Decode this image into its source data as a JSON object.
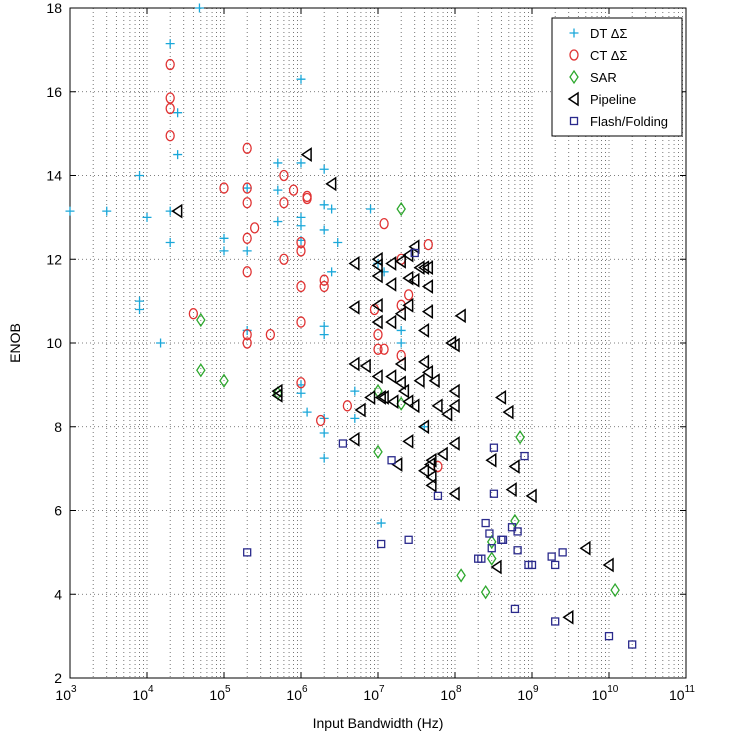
{
  "chart_data": {
    "type": "scatter",
    "title": "",
    "xlabel": "Input Bandwidth (Hz)",
    "ylabel": "ENOB",
    "xscale": "log",
    "xlim": [
      1000,
      100000000000
    ],
    "ylim": [
      2,
      18
    ],
    "grid": true,
    "legend_position": "top-right",
    "x_tick_labels": [
      {
        "base": "10",
        "exp": "3"
      },
      {
        "base": "10",
        "exp": "4"
      },
      {
        "base": "10",
        "exp": "5"
      },
      {
        "base": "10",
        "exp": "6"
      },
      {
        "base": "10",
        "exp": "7"
      },
      {
        "base": "10",
        "exp": "8"
      },
      {
        "base": "10",
        "exp": "9"
      },
      {
        "base": "10",
        "exp": "10"
      },
      {
        "base": "10",
        "exp": "11"
      }
    ],
    "y_tick_labels": [
      "2",
      "4",
      "6",
      "8",
      "10",
      "12",
      "14",
      "16",
      "18"
    ],
    "series": [
      {
        "name": "DT ΔΣ",
        "marker": "plus",
        "color": "#1aa7d9",
        "points": [
          [
            1000,
            13.15
          ],
          [
            3000,
            13.15
          ],
          [
            8000,
            14.0
          ],
          [
            8000,
            11.0
          ],
          [
            8000,
            10.8
          ],
          [
            10000,
            13.0
          ],
          [
            15000,
            10.0
          ],
          [
            20000,
            17.15
          ],
          [
            20000,
            13.15
          ],
          [
            20000,
            12.4
          ],
          [
            25000,
            15.5
          ],
          [
            25000,
            14.5
          ],
          [
            48000,
            18.0
          ],
          [
            100000,
            12.5
          ],
          [
            100000,
            12.2
          ],
          [
            200000,
            13.7
          ],
          [
            200000,
            12.2
          ],
          [
            200000,
            10.3
          ],
          [
            500000,
            14.3
          ],
          [
            500000,
            13.65
          ],
          [
            500000,
            12.9
          ],
          [
            1000000,
            16.3
          ],
          [
            1000000,
            14.3
          ],
          [
            1000000,
            13.0
          ],
          [
            1000000,
            12.8
          ],
          [
            1000000,
            12.45
          ],
          [
            1000000,
            9.0
          ],
          [
            1000000,
            8.8
          ],
          [
            1200000,
            8.35
          ],
          [
            2000000,
            14.15
          ],
          [
            2000000,
            13.3
          ],
          [
            2000000,
            12.7
          ],
          [
            2000000,
            10.4
          ],
          [
            2000000,
            10.2
          ],
          [
            2000000,
            8.2
          ],
          [
            2000000,
            7.85
          ],
          [
            2000000,
            7.25
          ],
          [
            2500000,
            13.2
          ],
          [
            2500000,
            11.7
          ],
          [
            3000000,
            12.4
          ],
          [
            5000000,
            8.85
          ],
          [
            5000000,
            8.2
          ],
          [
            8000000,
            13.2
          ],
          [
            10000000,
            11.9
          ],
          [
            11000000,
            5.7
          ],
          [
            12000000,
            11.7
          ],
          [
            20000000,
            10.3
          ],
          [
            20000000,
            10.0
          ],
          [
            40000000,
            8.0
          ]
        ]
      },
      {
        "name": "CT ΔΣ",
        "marker": "circle",
        "color": "#e03232",
        "points": [
          [
            20000,
            16.65
          ],
          [
            20000,
            15.85
          ],
          [
            20000,
            15.6
          ],
          [
            20000,
            14.95
          ],
          [
            40000,
            10.7
          ],
          [
            100000,
            13.7
          ],
          [
            200000,
            14.65
          ],
          [
            200000,
            13.7
          ],
          [
            200000,
            13.35
          ],
          [
            200000,
            12.5
          ],
          [
            200000,
            11.7
          ],
          [
            200000,
            10.2
          ],
          [
            200000,
            10.0
          ],
          [
            250000,
            12.75
          ],
          [
            400000,
            10.2
          ],
          [
            600000,
            14.0
          ],
          [
            600000,
            13.35
          ],
          [
            600000,
            12.0
          ],
          [
            800000,
            13.65
          ],
          [
            1000000,
            12.4
          ],
          [
            1000000,
            12.2
          ],
          [
            1000000,
            11.35
          ],
          [
            1000000,
            10.5
          ],
          [
            1000000,
            9.05
          ],
          [
            1200000,
            13.5
          ],
          [
            1200000,
            13.45
          ],
          [
            1800000,
            8.15
          ],
          [
            2000000,
            11.5
          ],
          [
            2000000,
            11.35
          ],
          [
            4000000,
            8.5
          ],
          [
            9000000,
            10.8
          ],
          [
            10000000,
            10.2
          ],
          [
            10000000,
            9.85
          ],
          [
            12000000,
            12.85
          ],
          [
            12000000,
            9.85
          ],
          [
            20000000,
            12.0
          ],
          [
            20000000,
            10.9
          ],
          [
            20000000,
            9.7
          ],
          [
            25000000,
            11.15
          ],
          [
            45000000,
            12.35
          ],
          [
            60000000,
            7.05
          ]
        ]
      },
      {
        "name": "SAR",
        "marker": "diamond",
        "color": "#2ea82e",
        "points": [
          [
            50000,
            10.55
          ],
          [
            50000,
            9.35
          ],
          [
            100000,
            9.1
          ],
          [
            500000,
            8.8
          ],
          [
            10000000,
            8.85
          ],
          [
            10000000,
            7.4
          ],
          [
            20000000,
            13.2
          ],
          [
            20000000,
            8.55
          ],
          [
            120000000,
            4.45
          ],
          [
            250000000,
            4.05
          ],
          [
            300000000,
            5.25
          ],
          [
            300000000,
            4.85
          ],
          [
            600000000,
            5.75
          ],
          [
            700000000,
            7.75
          ],
          [
            12000000000,
            4.1
          ]
        ]
      },
      {
        "name": "Pipeline",
        "marker": "triangle-left",
        "color": "#000000",
        "points": [
          [
            25000,
            13.15
          ],
          [
            500000,
            8.85
          ],
          [
            500000,
            8.75
          ],
          [
            1200000,
            14.5
          ],
          [
            2500000,
            13.8
          ],
          [
            5000000,
            11.9
          ],
          [
            5000000,
            10.85
          ],
          [
            5000000,
            9.5
          ],
          [
            5000000,
            7.7
          ],
          [
            6000000,
            8.4
          ],
          [
            7000000,
            9.45
          ],
          [
            8000000,
            8.7
          ],
          [
            10000000,
            12.0
          ],
          [
            10000000,
            11.85
          ],
          [
            10000000,
            11.6
          ],
          [
            10000000,
            10.9
          ],
          [
            10000000,
            10.5
          ],
          [
            10000000,
            9.2
          ],
          [
            11000000,
            8.7
          ],
          [
            12000000,
            8.7
          ],
          [
            15000000,
            11.9
          ],
          [
            15000000,
            11.4
          ],
          [
            15000000,
            10.5
          ],
          [
            15000000,
            9.2
          ],
          [
            16000000,
            8.6
          ],
          [
            18000000,
            7.1
          ],
          [
            20000000,
            11.95
          ],
          [
            20000000,
            10.7
          ],
          [
            20000000,
            9.5
          ],
          [
            20000000,
            9.05
          ],
          [
            22000000,
            8.85
          ],
          [
            25000000,
            12.1
          ],
          [
            25000000,
            11.55
          ],
          [
            25000000,
            10.9
          ],
          [
            25000000,
            8.6
          ],
          [
            25000000,
            7.65
          ],
          [
            30000000,
            12.3
          ],
          [
            30000000,
            11.5
          ],
          [
            30000000,
            8.5
          ],
          [
            35000000,
            11.8
          ],
          [
            35000000,
            9.1
          ],
          [
            40000000,
            11.8
          ],
          [
            40000000,
            10.3
          ],
          [
            40000000,
            9.55
          ],
          [
            40000000,
            8.0
          ],
          [
            40000000,
            6.95
          ],
          [
            45000000,
            11.8
          ],
          [
            45000000,
            11.35
          ],
          [
            45000000,
            10.75
          ],
          [
            45000000,
            9.3
          ],
          [
            48000000,
            7.1
          ],
          [
            50000000,
            7.2
          ],
          [
            50000000,
            6.8
          ],
          [
            50000000,
            6.6
          ],
          [
            55000000,
            9.1
          ],
          [
            60000000,
            8.5
          ],
          [
            70000000,
            7.35
          ],
          [
            80000000,
            8.3
          ],
          [
            90000000,
            10.0
          ],
          [
            100000000,
            9.95
          ],
          [
            100000000,
            8.85
          ],
          [
            100000000,
            8.5
          ],
          [
            100000000,
            7.6
          ],
          [
            100000000,
            6.4
          ],
          [
            120000000,
            10.65
          ],
          [
            300000000,
            7.2
          ],
          [
            350000000,
            4.65
          ],
          [
            400000000,
            8.7
          ],
          [
            500000000,
            8.35
          ],
          [
            550000000,
            6.5
          ],
          [
            600000000,
            7.05
          ],
          [
            1000000000,
            6.35
          ],
          [
            5000000000,
            5.1
          ],
          [
            10000000000,
            4.7
          ],
          [
            3000000000,
            3.45
          ]
        ]
      },
      {
        "name": "Flash/Folding",
        "marker": "square",
        "color": "#2a2a8c",
        "points": [
          [
            200000,
            5.0
          ],
          [
            3500000,
            7.6
          ],
          [
            11000000,
            5.2
          ],
          [
            15000000,
            7.2
          ],
          [
            25000000,
            5.3
          ],
          [
            60000000,
            6.35
          ],
          [
            30000000,
            12.15
          ],
          [
            200000000,
            4.85
          ],
          [
            220000000,
            4.85
          ],
          [
            250000000,
            5.7
          ],
          [
            280000000,
            5.45
          ],
          [
            300000000,
            5.1
          ],
          [
            320000000,
            7.5
          ],
          [
            320000000,
            6.4
          ],
          [
            400000000,
            5.3
          ],
          [
            420000000,
            5.3
          ],
          [
            550000000,
            5.6
          ],
          [
            600000000,
            3.65
          ],
          [
            650000000,
            5.05
          ],
          [
            650000000,
            5.5
          ],
          [
            800000000,
            7.3
          ],
          [
            900000000,
            4.7
          ],
          [
            1000000000,
            4.7
          ],
          [
            1800000000,
            4.9
          ],
          [
            2000000000,
            4.7
          ],
          [
            2000000000,
            3.35
          ],
          [
            2500000000,
            5.0
          ],
          [
            10000000000,
            3.0
          ],
          [
            20000000000,
            2.8
          ]
        ]
      }
    ]
  }
}
